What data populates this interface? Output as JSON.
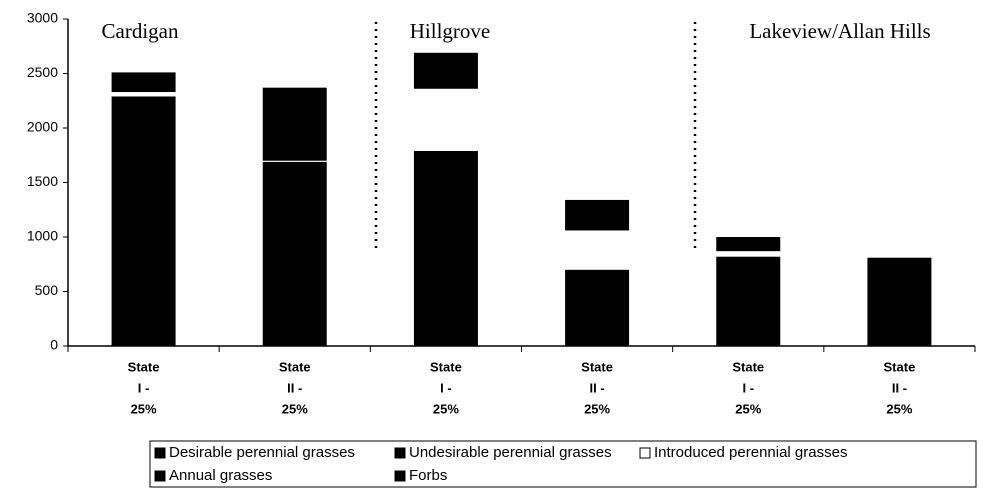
{
  "chart_data": {
    "type": "stacked_bar",
    "categories": [
      [
        "State",
        "I -",
        "25%"
      ],
      [
        "State",
        "II -",
        "25%"
      ],
      [
        "State",
        "I -",
        "25%"
      ],
      [
        "State",
        "II -",
        "25%"
      ],
      [
        "State",
        "I -",
        "25%"
      ],
      [
        "State",
        "II -",
        "25%"
      ]
    ],
    "annotations": [
      "Cardigan",
      "Hillgrove",
      "Lakeview/Allan Hills"
    ],
    "series": [
      {
        "name": "Desirable perennial grasses",
        "color": "#000000",
        "values": [
          2290,
          1690,
          1790,
          700,
          820,
          810
        ]
      },
      {
        "name": "Undesirable perennial grasses",
        "color": "#000000",
        "values": [
          0,
          0,
          0,
          0,
          0,
          0
        ]
      },
      {
        "name": "Introduced perennial grasses",
        "color": "#ffffff",
        "values": [
          40,
          10,
          570,
          360,
          50,
          0
        ]
      },
      {
        "name": "Annual grasses",
        "color": "#000000",
        "values": [
          0,
          0,
          0,
          0,
          0,
          0
        ]
      },
      {
        "name": "Forbs",
        "color": "#000000",
        "values": [
          180,
          670,
          330,
          280,
          130,
          0
        ]
      }
    ],
    "ylim": [
      0,
      3000
    ],
    "yticks": [
      0,
      500,
      1000,
      1500,
      2000,
      2500,
      3000
    ],
    "grid": false
  }
}
